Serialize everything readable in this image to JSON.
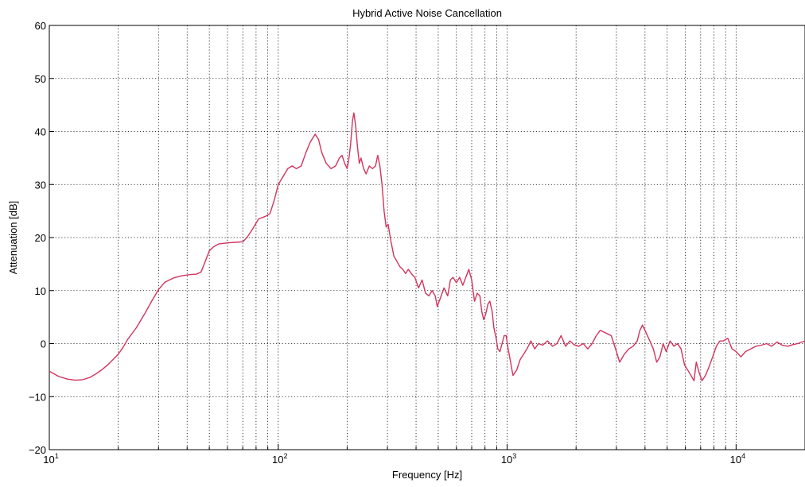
{
  "chart_data": {
    "type": "line",
    "title": "Hybrid Active Noise Cancellation",
    "xlabel": "Frequency [Hz]",
    "ylabel": "Attenuation [dB]",
    "xscale": "log",
    "xlim": [
      10,
      20000
    ],
    "ylim": [
      -20,
      60
    ],
    "grid": true,
    "y_ticks": [
      -20,
      -10,
      0,
      10,
      20,
      30,
      40,
      50,
      60
    ],
    "y_tick_labels": [
      "−20",
      "−10",
      "0",
      "10",
      "20",
      "30",
      "40",
      "50",
      "60"
    ],
    "x_major_ticks": [
      {
        "value": 10,
        "base": "10",
        "exp": "1"
      },
      {
        "value": 100,
        "base": "10",
        "exp": "2"
      },
      {
        "value": 1000,
        "base": "10",
        "exp": "3"
      },
      {
        "value": 10000,
        "base": "10",
        "exp": "4"
      }
    ],
    "line_color": "#d2345e",
    "series": [
      {
        "points": [
          [
            10,
            -5.2
          ],
          [
            11,
            -6.2
          ],
          [
            12,
            -6.7
          ],
          [
            13,
            -6.9
          ],
          [
            14,
            -6.8
          ],
          [
            15,
            -6.4
          ],
          [
            16,
            -5.7
          ],
          [
            17,
            -4.9
          ],
          [
            18,
            -4.0
          ],
          [
            19,
            -3.0
          ],
          [
            20,
            -2.0
          ],
          [
            21,
            -0.7
          ],
          [
            22,
            0.8
          ],
          [
            24,
            3.0
          ],
          [
            26,
            5.5
          ],
          [
            28,
            8.0
          ],
          [
            30,
            10.2
          ],
          [
            32,
            11.6
          ],
          [
            35,
            12.4
          ],
          [
            38,
            12.8
          ],
          [
            41,
            13.0
          ],
          [
            44,
            13.1
          ],
          [
            46,
            13.5
          ],
          [
            48,
            15.5
          ],
          [
            50,
            17.5
          ],
          [
            52,
            18.2
          ],
          [
            55,
            18.8
          ],
          [
            60,
            19.0
          ],
          [
            65,
            19.1
          ],
          [
            70,
            19.2
          ],
          [
            73,
            20.0
          ],
          [
            77,
            21.5
          ],
          [
            82,
            23.5
          ],
          [
            88,
            24.0
          ],
          [
            92,
            24.5
          ],
          [
            96,
            27.0
          ],
          [
            100,
            30.0
          ],
          [
            105,
            31.5
          ],
          [
            110,
            33.0
          ],
          [
            115,
            33.5
          ],
          [
            120,
            33.0
          ],
          [
            126,
            33.5
          ],
          [
            132,
            36.0
          ],
          [
            138,
            38.0
          ],
          [
            145,
            39.5
          ],
          [
            150,
            38.5
          ],
          [
            155,
            36.0
          ],
          [
            162,
            34.0
          ],
          [
            170,
            33.0
          ],
          [
            178,
            33.5
          ],
          [
            185,
            35.0
          ],
          [
            190,
            35.5
          ],
          [
            195,
            34.0
          ],
          [
            200,
            33.0
          ],
          [
            203,
            34.5
          ],
          [
            207,
            37.5
          ],
          [
            211,
            42.0
          ],
          [
            214,
            43.5
          ],
          [
            218,
            41.0
          ],
          [
            222,
            37.0
          ],
          [
            226,
            34.0
          ],
          [
            230,
            35.0
          ],
          [
            236,
            33.0
          ],
          [
            242,
            32.0
          ],
          [
            250,
            33.5
          ],
          [
            258,
            33.0
          ],
          [
            266,
            33.5
          ],
          [
            272,
            35.5
          ],
          [
            278,
            33.5
          ],
          [
            284,
            30.0
          ],
          [
            290,
            25.0
          ],
          [
            296,
            22.0
          ],
          [
            302,
            22.5
          ],
          [
            310,
            19.5
          ],
          [
            320,
            16.5
          ],
          [
            330,
            15.5
          ],
          [
            340,
            14.5
          ],
          [
            350,
            14.0
          ],
          [
            360,
            13.2
          ],
          [
            370,
            14.0
          ],
          [
            385,
            13.0
          ],
          [
            395,
            12.5
          ],
          [
            410,
            10.5
          ],
          [
            425,
            12.0
          ],
          [
            440,
            9.5
          ],
          [
            455,
            9.0
          ],
          [
            470,
            10.0
          ],
          [
            485,
            9.0
          ],
          [
            495,
            7.0
          ],
          [
            510,
            8.5
          ],
          [
            530,
            10.5
          ],
          [
            550,
            9.0
          ],
          [
            565,
            12.0
          ],
          [
            580,
            12.5
          ],
          [
            600,
            11.5
          ],
          [
            620,
            12.5
          ],
          [
            640,
            11.0
          ],
          [
            660,
            12.5
          ],
          [
            680,
            14.0
          ],
          [
            700,
            12.0
          ],
          [
            720,
            8.0
          ],
          [
            740,
            9.5
          ],
          [
            760,
            9.0
          ],
          [
            775,
            6.0
          ],
          [
            790,
            4.5
          ],
          [
            805,
            5.5
          ],
          [
            825,
            7.5
          ],
          [
            840,
            8.0
          ],
          [
            860,
            6.0
          ],
          [
            875,
            3.0
          ],
          [
            895,
            1.0
          ],
          [
            910,
            -1.0
          ],
          [
            930,
            -1.5
          ],
          [
            950,
            0.0
          ],
          [
            970,
            1.5
          ],
          [
            990,
            1.5
          ],
          [
            1010,
            -1.0
          ],
          [
            1030,
            -3.0
          ],
          [
            1060,
            -6.0
          ],
          [
            1100,
            -5.0
          ],
          [
            1140,
            -3.0
          ],
          [
            1180,
            -2.0
          ],
          [
            1220,
            -1.0
          ],
          [
            1270,
            0.5
          ],
          [
            1320,
            -1.0
          ],
          [
            1370,
            0.0
          ],
          [
            1430,
            -0.3
          ],
          [
            1500,
            0.5
          ],
          [
            1580,
            -0.5
          ],
          [
            1650,
            0.0
          ],
          [
            1720,
            1.5
          ],
          [
            1800,
            -0.5
          ],
          [
            1880,
            0.5
          ],
          [
            1960,
            -0.2
          ],
          [
            2050,
            -0.5
          ],
          [
            2150,
            0.0
          ],
          [
            2250,
            -1.0
          ],
          [
            2350,
            0.0
          ],
          [
            2450,
            1.5
          ],
          [
            2550,
            2.5
          ],
          [
            2700,
            2.0
          ],
          [
            2850,
            1.5
          ],
          [
            3000,
            -1.5
          ],
          [
            3100,
            -3.5
          ],
          [
            3250,
            -2.0
          ],
          [
            3400,
            -1.0
          ],
          [
            3550,
            -0.5
          ],
          [
            3700,
            0.5
          ],
          [
            3800,
            2.5
          ],
          [
            3900,
            3.5
          ],
          [
            4050,
            2.0
          ],
          [
            4200,
            0.5
          ],
          [
            4350,
            -1.0
          ],
          [
            4500,
            -3.5
          ],
          [
            4650,
            -2.5
          ],
          [
            4800,
            0.0
          ],
          [
            4950,
            -1.5
          ],
          [
            5150,
            0.5
          ],
          [
            5350,
            -0.5
          ],
          [
            5550,
            0.0
          ],
          [
            5750,
            -1.0
          ],
          [
            5950,
            -4.0
          ],
          [
            6150,
            -5.0
          ],
          [
            6350,
            -6.0
          ],
          [
            6550,
            -7.0
          ],
          [
            6700,
            -3.5
          ],
          [
            6900,
            -5.5
          ],
          [
            7100,
            -7.0
          ],
          [
            7350,
            -6.0
          ],
          [
            7600,
            -4.5
          ],
          [
            7900,
            -2.5
          ],
          [
            8200,
            -0.5
          ],
          [
            8500,
            0.5
          ],
          [
            8800,
            0.5
          ],
          [
            9200,
            1.0
          ],
          [
            9600,
            -1.0
          ],
          [
            10000,
            -1.5
          ],
          [
            10500,
            -2.5
          ],
          [
            11000,
            -1.5
          ],
          [
            11600,
            -1.0
          ],
          [
            12200,
            -0.5
          ],
          [
            12900,
            -0.3
          ],
          [
            13600,
            0.0
          ],
          [
            14300,
            -0.5
          ],
          [
            15100,
            0.3
          ],
          [
            15900,
            -0.3
          ],
          [
            16800,
            -0.5
          ],
          [
            17700,
            -0.2
          ],
          [
            18600,
            0.0
          ],
          [
            19400,
            0.3
          ],
          [
            20000,
            0.5
          ]
        ]
      }
    ]
  }
}
